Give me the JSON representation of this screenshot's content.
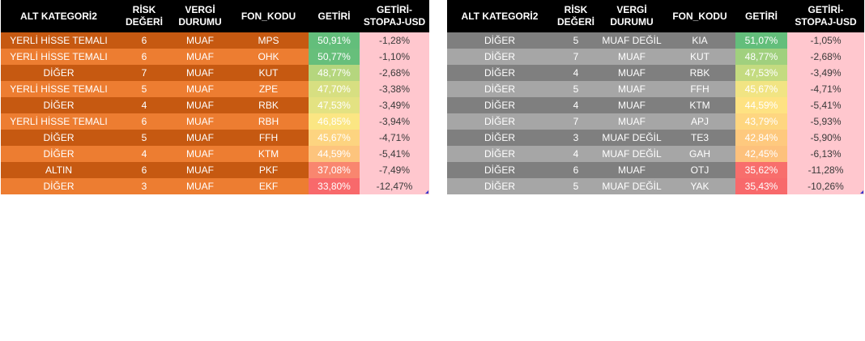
{
  "headers": {
    "alt_kategori": "ALT KATEGORİ2",
    "risk": [
      "RİSK",
      "DEĞERİ"
    ],
    "vergi": [
      "VERGİ",
      "DURUMU"
    ],
    "fon_kodu": "FON_KODU",
    "getiri": "GETİRİ",
    "getiri_usd": [
      "GETİRİ-",
      "STOPAJ-USD"
    ]
  },
  "colors": {
    "header_bg": "#000000",
    "orange_dark": "#c65911",
    "orange_light": "#ed7d31",
    "gray_dark": "#7f7f7f",
    "gray_light": "#a6a6a6",
    "negative_bg": "#ffc7ce"
  },
  "left_table": {
    "rows": [
      {
        "alt_kategori": "YERLİ HİSSE TEMALI",
        "risk": "6",
        "vergi": "MUAF",
        "fon_kodu": "MPS",
        "getiri": "50,91%",
        "getiri_color": "#63be7b",
        "getiri_usd": "-1,28%"
      },
      {
        "alt_kategori": "YERLİ HİSSE TEMALI",
        "risk": "6",
        "vergi": "MUAF",
        "fon_kodu": "OHK",
        "getiri": "50,77%",
        "getiri_color": "#67bf7b",
        "getiri_usd": "-1,10%"
      },
      {
        "alt_kategori": "DİĞER",
        "risk": "7",
        "vergi": "MUAF",
        "fon_kodu": "KUT",
        "getiri": "48,77%",
        "getiri_color": "#b5d67e",
        "getiri_usd": "-2,68%"
      },
      {
        "alt_kategori": "YERLİ HİSSE TEMALI",
        "risk": "5",
        "vergi": "MUAF",
        "fon_kodu": "ZPE",
        "getiri": "47,70%",
        "getiri_color": "#d7df81",
        "getiri_usd": "-3,38%"
      },
      {
        "alt_kategori": "DİĞER",
        "risk": "4",
        "vergi": "MUAF",
        "fon_kodu": "RBK",
        "getiri": "47,53%",
        "getiri_color": "#e3e282",
        "getiri_usd": "-3,49%"
      },
      {
        "alt_kategori": "YERLİ HİSSE TEMALI",
        "risk": "6",
        "vergi": "MUAF",
        "fon_kodu": "RBH",
        "getiri": "46,85%",
        "getiri_color": "#fbe683",
        "getiri_usd": "-3,94%"
      },
      {
        "alt_kategori": "DİĞER",
        "risk": "5",
        "vergi": "MUAF",
        "fon_kodu": "FFH",
        "getiri": "45,67%",
        "getiri_color": "#fdd480",
        "getiri_usd": "-4,71%"
      },
      {
        "alt_kategori": "DİĞER",
        "risk": "4",
        "vergi": "MUAF",
        "fon_kodu": "KTM",
        "getiri": "44,59%",
        "getiri_color": "#fdc47d",
        "getiri_usd": "-5,41%"
      },
      {
        "alt_kategori": "ALTIN",
        "risk": "6",
        "vergi": "MUAF",
        "fon_kodu": "PKF",
        "getiri": "37,08%",
        "getiri_color": "#f9866f",
        "getiri_usd": "-7,49%"
      },
      {
        "alt_kategori": "DİĞER",
        "risk": "3",
        "vergi": "MUAF",
        "fon_kodu": "EKF",
        "getiri": "33,80%",
        "getiri_color": "#f8696b",
        "getiri_usd": "-12,47%"
      }
    ]
  },
  "right_table": {
    "rows": [
      {
        "alt_kategori": "DİĞER",
        "risk": "5",
        "vergi": "MUAF DEĞİL",
        "fon_kodu": "KIA",
        "getiri": "51,07%",
        "getiri_color": "#63be7b",
        "getiri_usd": "-1,05%"
      },
      {
        "alt_kategori": "DİĞER",
        "risk": "7",
        "vergi": "MUAF",
        "fon_kodu": "KUT",
        "getiri": "48,77%",
        "getiri_color": "#a0d07e",
        "getiri_usd": "-2,68%"
      },
      {
        "alt_kategori": "DİĞER",
        "risk": "4",
        "vergi": "MUAF",
        "fon_kodu": "RBK",
        "getiri": "47,53%",
        "getiri_color": "#c4db80",
        "getiri_usd": "-3,49%"
      },
      {
        "alt_kategori": "DİĞER",
        "risk": "5",
        "vergi": "MUAF",
        "fon_kodu": "FFH",
        "getiri": "45,67%",
        "getiri_color": "#f1e483",
        "getiri_usd": "-4,71%"
      },
      {
        "alt_kategori": "DİĞER",
        "risk": "4",
        "vergi": "MUAF",
        "fon_kodu": "KTM",
        "getiri": "44,59%",
        "getiri_color": "#fee282",
        "getiri_usd": "-5,41%"
      },
      {
        "alt_kategori": "DİĞER",
        "risk": "7",
        "vergi": "MUAF",
        "fon_kodu": "APJ",
        "getiri": "43,79%",
        "getiri_color": "#fed680",
        "getiri_usd": "-5,93%"
      },
      {
        "alt_kategori": "DİĞER",
        "risk": "3",
        "vergi": "MUAF DEĞİL",
        "fon_kodu": "TE3",
        "getiri": "42,84%",
        "getiri_color": "#fec97e",
        "getiri_usd": "-5,90%"
      },
      {
        "alt_kategori": "DİĞER",
        "risk": "4",
        "vergi": "MUAF DEĞİL",
        "fon_kodu": "GAH",
        "getiri": "42,45%",
        "getiri_color": "#fdc17c",
        "getiri_usd": "-6,13%"
      },
      {
        "alt_kategori": "DİĞER",
        "risk": "6",
        "vergi": "MUAF",
        "fon_kodu": "OTJ",
        "getiri": "35,62%",
        "getiri_color": "#f86e6c",
        "getiri_usd": "-11,28%"
      },
      {
        "alt_kategori": "DİĞER",
        "risk": "5",
        "vergi": "MUAF DEĞİL",
        "fon_kodu": "YAK",
        "getiri": "35,43%",
        "getiri_color": "#f8696b",
        "getiri_usd": "-10,26%"
      }
    ]
  }
}
